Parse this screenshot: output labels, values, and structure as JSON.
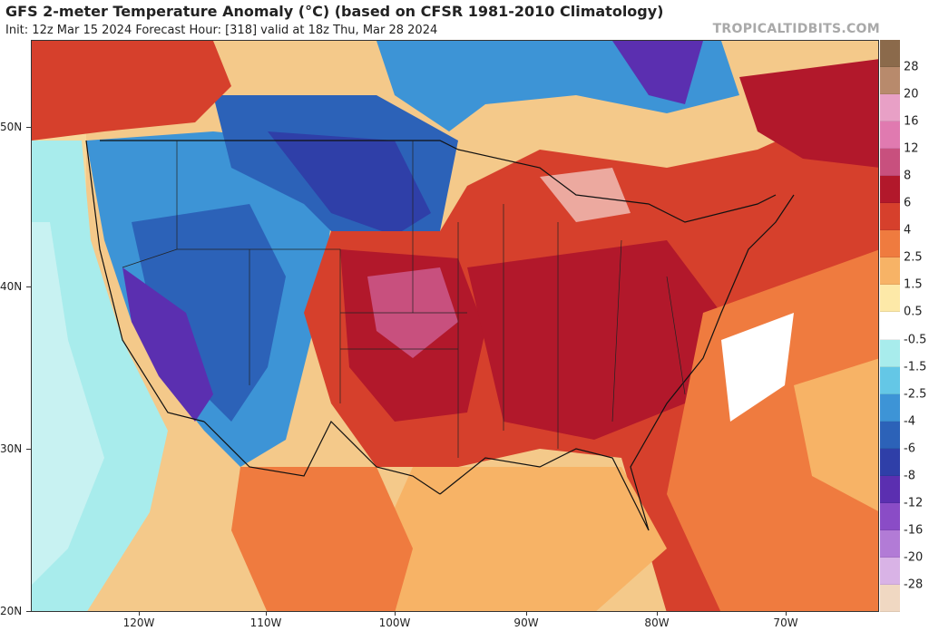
{
  "header": {
    "title": "GFS 2-meter Temperature Anomaly (°C) (based on CFSR 1981-2010 Climatology)",
    "subtitle": "Init: 12z Mar 15 2024   Forecast Hour: [318]   valid at 18z Thu, Mar 28 2024",
    "brand": "TROPICALTIDBITS.COM"
  },
  "map": {
    "lat_labels": [
      "50N",
      "40N",
      "30N",
      "20N"
    ],
    "lon_labels": [
      "120W",
      "110W",
      "100W",
      "90W",
      "80W",
      "70W"
    ]
  },
  "colorbar": {
    "labels": [
      "28",
      "20",
      "16",
      "12",
      "8",
      "6",
      "4",
      "2.5",
      "1.5",
      "0.5",
      "-0.5",
      "-1.5",
      "-2.5",
      "-4",
      "-6",
      "-8",
      "-12",
      "-16",
      "-20",
      "-28"
    ],
    "colors": [
      "#8b6a4b",
      "#b88a6c",
      "#e8a0c6",
      "#e07ab0",
      "#c8507e",
      "#b2182b",
      "#d6402c",
      "#ef7b3f",
      "#f7b366",
      "#fde9a8",
      "#ffffff",
      "#a8ecec",
      "#64c7e6",
      "#3d94d6",
      "#2c62b8",
      "#2f3fa8",
      "#5b2fb0",
      "#8a4cc6",
      "#b27bd6",
      "#d9b3e6",
      "#f0d8c2"
    ]
  }
}
